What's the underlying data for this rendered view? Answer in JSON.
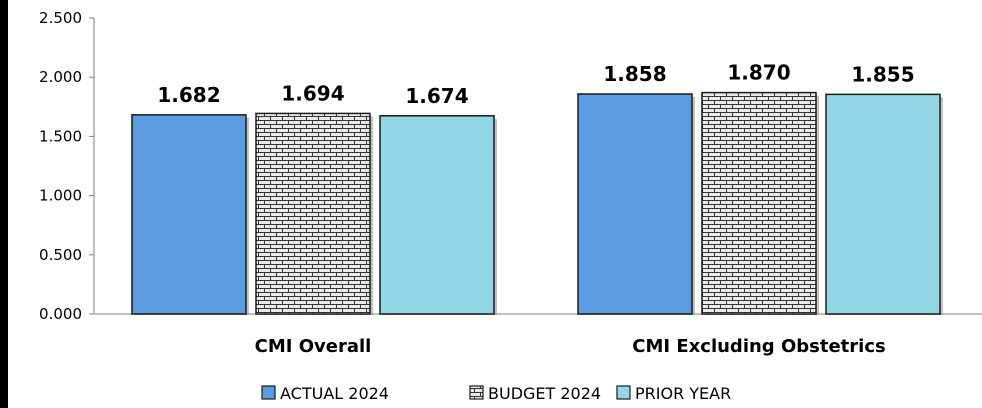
{
  "chart_data": {
    "type": "bar",
    "title": "",
    "xlabel": "",
    "ylabel": "",
    "categories": [
      "CMI Overall",
      "CMI Excluding Obstetrics"
    ],
    "series": [
      {
        "name": "ACTUAL 2024",
        "values": [
          1.682,
          1.858
        ],
        "labels": [
          "1.682",
          "1.858"
        ],
        "color": "#5B9BE0",
        "pattern": "solid"
      },
      {
        "name": "BUDGET 2024",
        "values": [
          1.694,
          1.87
        ],
        "labels": [
          "1.694",
          "1.870"
        ],
        "color": "#E6E6E6",
        "pattern": "brick"
      },
      {
        "name": "PRIOR YEAR",
        "values": [
          1.674,
          1.855
        ],
        "labels": [
          "1.674",
          "1.855"
        ],
        "color": "#93D6E6",
        "pattern": "solid"
      }
    ],
    "ylim": [
      0,
      2.5
    ],
    "yticks": [
      "0.000",
      "0.500",
      "1.000",
      "1.500",
      "2.000",
      "2.500"
    ],
    "grid": false,
    "legend_position": "bottom"
  }
}
